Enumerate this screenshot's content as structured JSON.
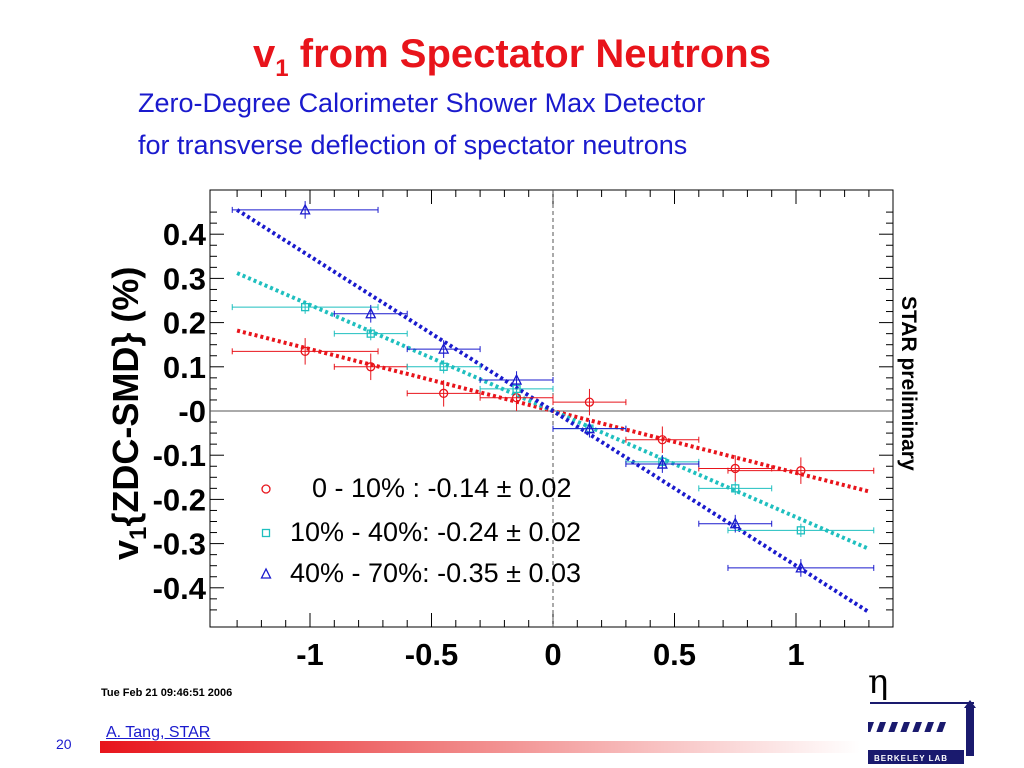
{
  "slide": {
    "title_main": "v",
    "title_sub": "1",
    "title_rest": " from Spectator Neutrons",
    "subtitle_line1": "Zero-Degree Calorimeter Shower Max Detector",
    "subtitle_line2": "for transverse deflection of spectator neutrons",
    "timestamp": "Tue Feb 21 09:46:51 2006",
    "page_number": "20",
    "author": "A. Tang, STAR",
    "logo_text": "BERKELEY LAB",
    "colors": {
      "title": "#e8141b",
      "subtitle": "#1a1acd",
      "footer_bar": "#e8141b"
    }
  },
  "chart_data": {
    "type": "scatter",
    "ylabel_main": "v",
    "ylabel_sub": "1",
    "ylabel_rest": "{ZDC-SMD} (%)",
    "xlabel": "η",
    "watermark": "STAR preliminary",
    "xlim": [
      -1.32,
      1.32
    ],
    "ylim": [
      -0.48,
      0.48
    ],
    "xticks": [
      {
        "value": -1,
        "label": "-1"
      },
      {
        "value": -0.5,
        "label": "-0.5"
      },
      {
        "value": 0,
        "label": "0"
      },
      {
        "value": 0.5,
        "label": "0.5"
      },
      {
        "value": 1,
        "label": "1"
      }
    ],
    "yticks": [
      {
        "value": 0.4,
        "label": "0.4"
      },
      {
        "value": 0.3,
        "label": "0.3"
      },
      {
        "value": 0.2,
        "label": "0.2"
      },
      {
        "value": 0.1,
        "label": "0.1"
      },
      {
        "value": 0,
        "label": "-0"
      },
      {
        "value": -0.1,
        "label": "-0.1"
      },
      {
        "value": -0.2,
        "label": "-0.2"
      },
      {
        "value": -0.3,
        "label": "-0.3"
      },
      {
        "value": -0.4,
        "label": "-0.4"
      }
    ],
    "grid": false,
    "legend_position": "bottom-left",
    "series": [
      {
        "name": "0  - 10%  : -0.14",
        "legend_suffix": "± 0.02",
        "marker": "circle",
        "color": "#e8141b",
        "fit_slope": -0.14,
        "points": [
          {
            "x": -1.02,
            "y": 0.135,
            "xerr": 0.3,
            "yerr": 0.03
          },
          {
            "x": -0.75,
            "y": 0.1,
            "xerr": 0.15,
            "yerr": 0.03
          },
          {
            "x": -0.45,
            "y": 0.04,
            "xerr": 0.15,
            "yerr": 0.03
          },
          {
            "x": -0.15,
            "y": 0.03,
            "xerr": 0.15,
            "yerr": 0.03
          },
          {
            "x": 0.15,
            "y": 0.02,
            "xerr": 0.15,
            "yerr": 0.03
          },
          {
            "x": 0.45,
            "y": -0.065,
            "xerr": 0.15,
            "yerr": 0.03
          },
          {
            "x": 0.75,
            "y": -0.13,
            "xerr": 0.15,
            "yerr": 0.03
          },
          {
            "x": 1.02,
            "y": -0.135,
            "xerr": 0.3,
            "yerr": 0.03
          }
        ]
      },
      {
        "name": "10% - 40%: -0.24",
        "legend_suffix": "± 0.02",
        "marker": "square",
        "color": "#1fbfbf",
        "fit_slope": -0.24,
        "points": [
          {
            "x": -1.02,
            "y": 0.235,
            "xerr": 0.3,
            "yerr": 0.015
          },
          {
            "x": -0.75,
            "y": 0.175,
            "xerr": 0.15,
            "yerr": 0.015
          },
          {
            "x": -0.45,
            "y": 0.1,
            "xerr": 0.15,
            "yerr": 0.015
          },
          {
            "x": -0.15,
            "y": 0.05,
            "xerr": 0.15,
            "yerr": 0.015
          },
          {
            "x": 0.15,
            "y": -0.04,
            "xerr": 0.15,
            "yerr": 0.015
          },
          {
            "x": 0.45,
            "y": -0.115,
            "xerr": 0.15,
            "yerr": 0.015
          },
          {
            "x": 0.75,
            "y": -0.175,
            "xerr": 0.15,
            "yerr": 0.015
          },
          {
            "x": 1.02,
            "y": -0.27,
            "xerr": 0.3,
            "yerr": 0.015
          }
        ]
      },
      {
        "name": "40% - 70%: -0.35",
        "legend_suffix": "± 0.03",
        "marker": "triangle",
        "color": "#1a1acd",
        "fit_slope": -0.35,
        "points": [
          {
            "x": -1.02,
            "y": 0.455,
            "xerr": 0.3,
            "yerr": 0.02
          },
          {
            "x": -0.75,
            "y": 0.22,
            "xerr": 0.15,
            "yerr": 0.02
          },
          {
            "x": -0.45,
            "y": 0.14,
            "xerr": 0.15,
            "yerr": 0.02
          },
          {
            "x": -0.15,
            "y": 0.07,
            "xerr": 0.15,
            "yerr": 0.02
          },
          {
            "x": 0.15,
            "y": -0.04,
            "xerr": 0.15,
            "yerr": 0.02
          },
          {
            "x": 0.45,
            "y": -0.12,
            "xerr": 0.15,
            "yerr": 0.02
          },
          {
            "x": 0.75,
            "y": -0.255,
            "xerr": 0.15,
            "yerr": 0.02
          },
          {
            "x": 1.02,
            "y": -0.355,
            "xerr": 0.3,
            "yerr": 0.02
          }
        ]
      }
    ]
  }
}
